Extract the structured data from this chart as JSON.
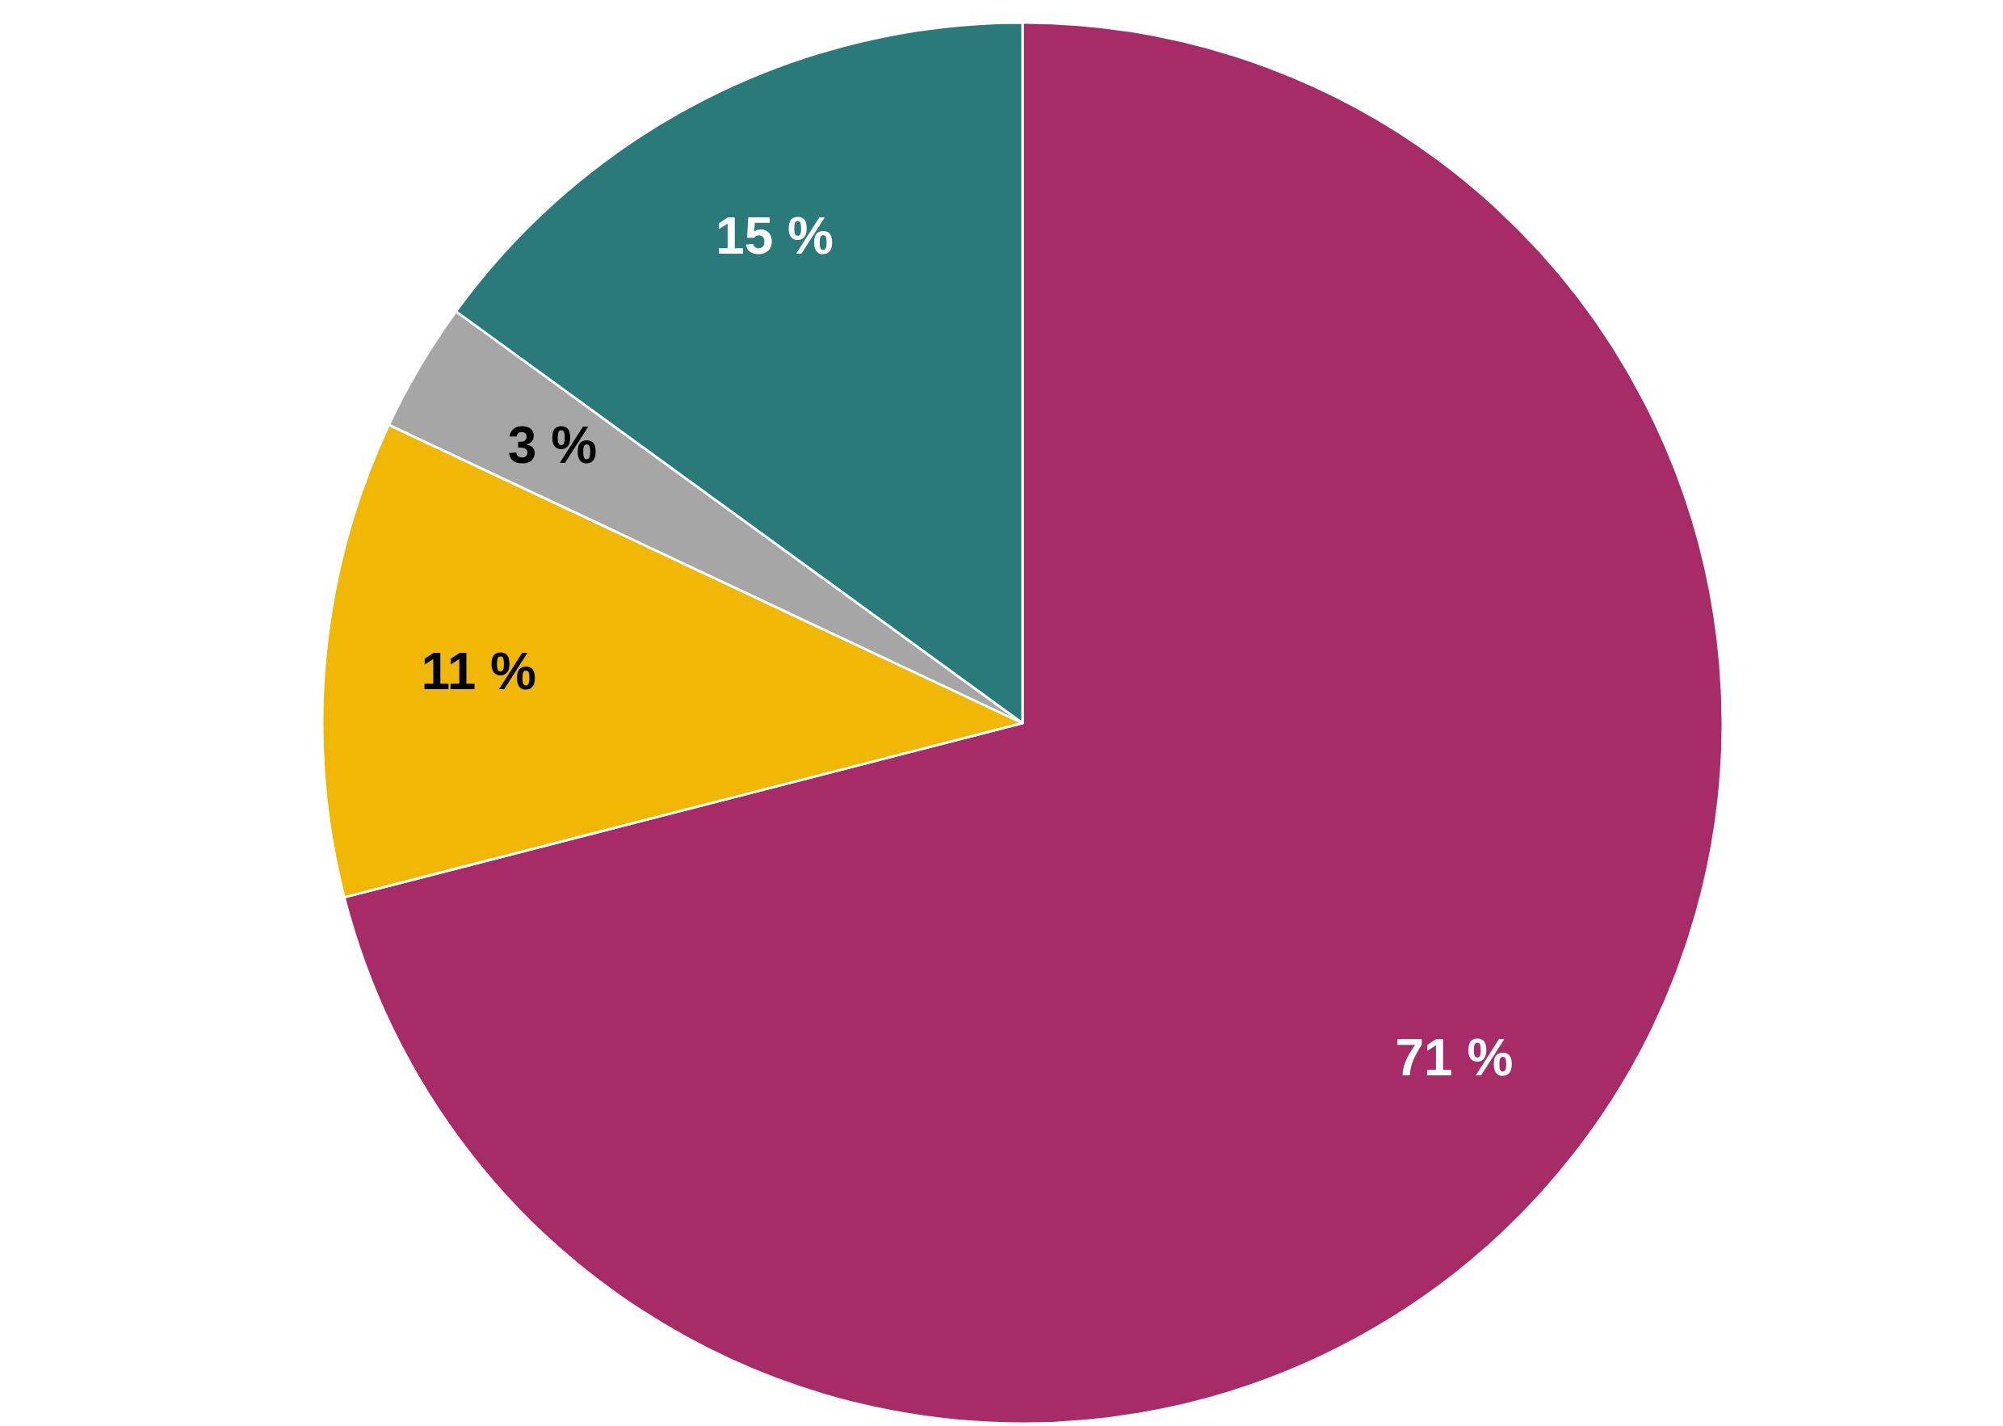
{
  "chart_data": {
    "type": "pie",
    "categories": [
      null,
      null,
      null,
      null
    ],
    "values": [
      71,
      11,
      3,
      15
    ],
    "colors": [
      "#a62b67",
      "#f1b705",
      "#a6a6a6",
      "#2a7a7a"
    ],
    "value_labels": [
      "71 %",
      "11 %",
      "3 %",
      "15 %"
    ]
  }
}
